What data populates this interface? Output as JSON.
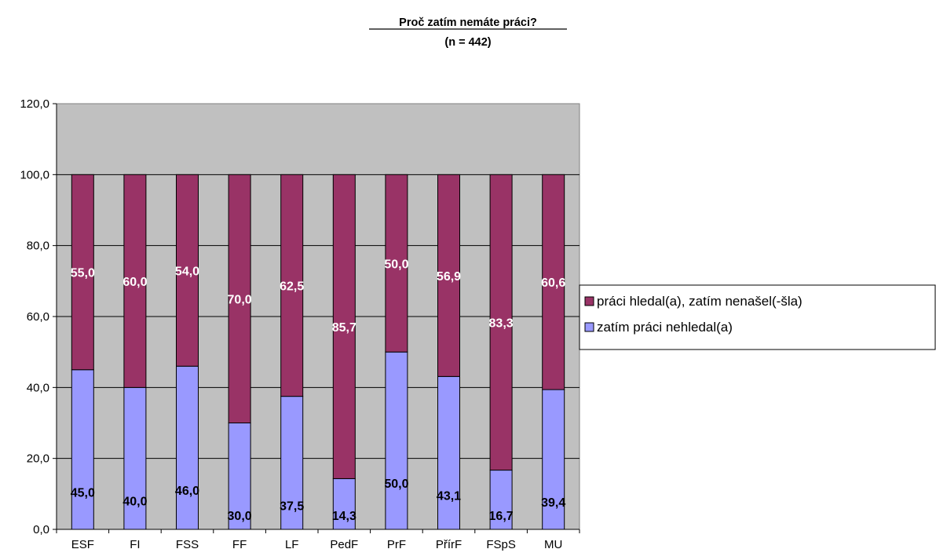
{
  "chart_data": {
    "type": "bar",
    "stacked": true,
    "title": "Proč zatím nemáte práci?",
    "subtitle": "(n = 442)",
    "categories": [
      "ESF",
      "FI",
      "FSS",
      "FF",
      "LF",
      "PedF",
      "PrF",
      "PřírF",
      "FSpS",
      "MU"
    ],
    "series": [
      {
        "name": "zatím práci nehledal(a)",
        "color": "#9999ff",
        "values": [
          45.0,
          40.0,
          46.0,
          30.0,
          37.5,
          14.3,
          50.0,
          43.1,
          16.7,
          39.4
        ],
        "labels": [
          "45,0",
          "40,0",
          "46,0",
          "30,0",
          "37,5",
          "14,3",
          "50,0",
          "43,1",
          "16,7",
          "39,4"
        ]
      },
      {
        "name": "práci hledal(a), zatím nenašel(-šla)",
        "color": "#993366",
        "values": [
          55.0,
          60.0,
          54.0,
          70.0,
          62.5,
          85.7,
          50.0,
          56.9,
          83.3,
          60.6
        ],
        "labels": [
          "55,0",
          "60,0",
          "54,0",
          "70,0",
          "62,5",
          "85,7",
          "50,0",
          "56,9",
          "83,3",
          "60,6"
        ]
      }
    ],
    "ylim": [
      0,
      120
    ],
    "yticks": [
      0,
      20,
      40,
      60,
      80,
      100,
      120
    ],
    "ytick_labels": [
      "0,0",
      "20,0",
      "40,0",
      "60,0",
      "80,0",
      "100,0",
      "120,0"
    ],
    "grid": true,
    "plot_background": "#c0c0c0",
    "legend_position": "right",
    "xlabel": "",
    "ylabel": ""
  }
}
